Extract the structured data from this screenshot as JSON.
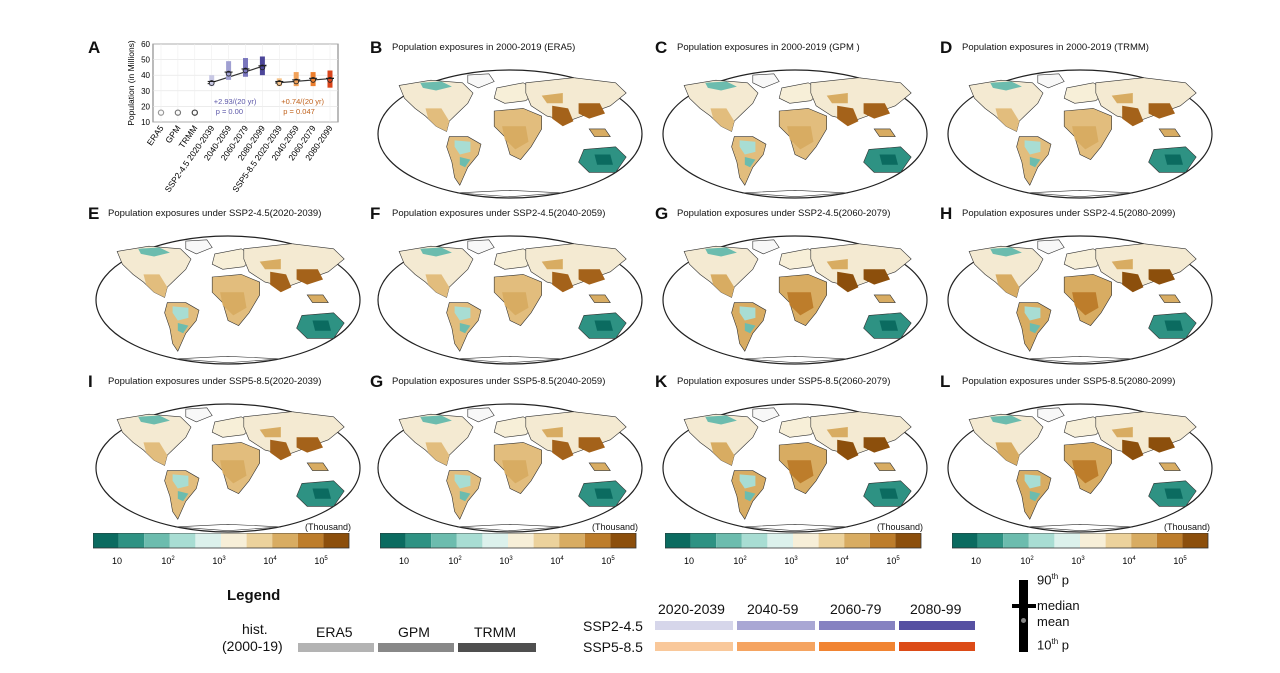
{
  "panels": {
    "A": "A",
    "B": "B",
    "C": "C",
    "D": "D",
    "E": "E",
    "F": "F",
    "G1": "G",
    "H": "H",
    "I": "I",
    "G2": "G",
    "K": "K",
    "L": "L"
  },
  "maps": [
    {
      "id": "B",
      "title": "Population exposures in 2000-2019 (ERA5)",
      "intensity": 0.85
    },
    {
      "id": "C",
      "title": "Population exposures in 2000-2019 (GPM )",
      "intensity": 0.85
    },
    {
      "id": "D",
      "title": "Population exposures in 2000-2019 (TRMM)",
      "intensity": 0.85
    },
    {
      "id": "E",
      "title": "Population exposures under SSP2-4.5(2020-2039)",
      "intensity": 0.9
    },
    {
      "id": "F",
      "title": "Population exposures under SSP2-4.5(2040-2059)",
      "intensity": 0.95
    },
    {
      "id": "G",
      "title": "Population exposures under SSP2-4.5(2060-2079)",
      "intensity": 1.0
    },
    {
      "id": "H",
      "title": "Population exposures under SSP2-4.5(2080-2099)",
      "intensity": 1.0
    },
    {
      "id": "I",
      "title": "Population exposures under SSP5-8.5(2020-2039)",
      "intensity": 0.9
    },
    {
      "id": "G",
      "title": "Population exposures under SSP5-8.5(2040-2059)",
      "intensity": 0.95
    },
    {
      "id": "K",
      "title": "Population exposures under SSP5-8.5(2060-2079)",
      "intensity": 1.0
    },
    {
      "id": "L",
      "title": "Population exposures under SSP5-8.5(2080-2099)",
      "intensity": 1.0
    }
  ],
  "colorbar": {
    "unit": "(Thousand)",
    "colors": [
      "#0b6b60",
      "#2e9283",
      "#6cbcae",
      "#a8ddd3",
      "#dcf1ec",
      "#f7efd8",
      "#ecd29c",
      "#d8ac62",
      "#bd7d2b",
      "#8c4f0c"
    ],
    "tick_labels": [
      {
        "base": "10",
        "exp": ""
      },
      {
        "base": "10",
        "exp": "2"
      },
      {
        "base": "10",
        "exp": "3"
      },
      {
        "base": "10",
        "exp": "4"
      },
      {
        "base": "10",
        "exp": "5"
      }
    ]
  },
  "chart_data": {
    "type": "scatter",
    "ylabel": "Population (in Millions)",
    "ylim": [
      10,
      60
    ],
    "yticks": [
      "10",
      "20",
      "30",
      "40",
      "50",
      "60"
    ],
    "grid": true,
    "categories": [
      "ERA5",
      "GPM",
      "TRMM",
      "SSP2-4.5 2020-2039",
      "2040-2059",
      "2060-2079",
      "2080-2099",
      "SSP5-8.5 2020-2039",
      "2040-2059",
      "2060-2079",
      "2080-2099"
    ],
    "historical": {
      "values": [
        16,
        16,
        16
      ],
      "colors": [
        "#999999",
        "#777777",
        "#444444"
      ]
    },
    "series": [
      {
        "name": "SSP2-4.5",
        "colors": [
          "#c8c8e4",
          "#a0a0d2",
          "#7a76bd",
          "#4c4699"
        ],
        "p10": [
          33,
          37,
          39,
          40
        ],
        "p90": [
          40,
          49,
          51,
          52
        ],
        "median": [
          36,
          42,
          44,
          46
        ],
        "mean": [
          35,
          41,
          43,
          45
        ],
        "trend": [
          34.5,
          46.5
        ],
        "annotation": "+2.93/(20 yr)",
        "pvalue": "p = 0.00",
        "text_color": "#5c57a8"
      },
      {
        "name": "SSP5-8.5",
        "colors": [
          "#f6c48c",
          "#f2a25a",
          "#ec7e2d",
          "#d9451b"
        ],
        "p10": [
          33,
          33,
          33,
          32
        ],
        "p90": [
          38,
          42,
          42,
          43
        ],
        "median": [
          36,
          37,
          38,
          38
        ],
        "mean": [
          35,
          36,
          37,
          37
        ],
        "trend": [
          35.0,
          38.0
        ],
        "annotation": "+0.74/(20 yr)",
        "pvalue": "p = 0.047",
        "text_color": "#c0621c"
      }
    ]
  },
  "legend": {
    "title": "Legend",
    "hist_line1": "hist.",
    "hist_line2": "(2000-19)",
    "hist_items": [
      {
        "label": "ERA5",
        "color": "#b3b3b3"
      },
      {
        "label": "GPM",
        "color": "#888888"
      },
      {
        "label": "TRMM",
        "color": "#4f4f4f"
      }
    ],
    "period_labels": [
      "2020-2039",
      "2040-59",
      "2060-79",
      "2080-99"
    ],
    "ssp245_label": "SSP2-4.5",
    "ssp585_label": "SSP5-8.5",
    "ssp245_colors": [
      "#d6d6ea",
      "#a9a7d4",
      "#8682c1",
      "#5650a2"
    ],
    "ssp585_colors": [
      "#f9c89a",
      "#f5a461",
      "#f18432",
      "#dc4b17"
    ],
    "stat_p90": "90",
    "stat_p90_sup": "th",
    "stat_p90_tail": " p",
    "stat_median": "median",
    "stat_mean": "mean",
    "stat_p10": "10",
    "stat_p10_sup": "th",
    "stat_p10_tail": " p"
  }
}
